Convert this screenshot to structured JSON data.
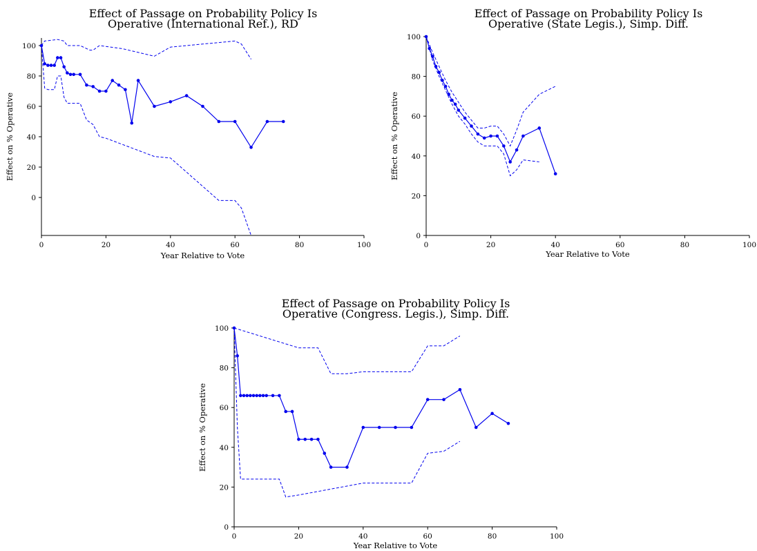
{
  "chart_data": [
    {
      "type": "line",
      "title_lines": [
        "Effect of Passage on Probability Policy Is",
        "Operative (International Ref.), RD"
      ],
      "xlabel": "Year Relative to Vote",
      "ylabel": "Effect on % Operative",
      "xlim": [
        0,
        100
      ],
      "ylim": [
        -25,
        105
      ],
      "xticks": [
        0,
        20,
        40,
        60,
        80,
        100
      ],
      "yticks": [
        0,
        20,
        40,
        60,
        80,
        100
      ],
      "grid": false,
      "series": [
        {
          "role": "estimate",
          "x": [
            0,
            1,
            2,
            3,
            4,
            5,
            6,
            7,
            8,
            9,
            10,
            12,
            14,
            16,
            18,
            20,
            22,
            24,
            26,
            28,
            30,
            35,
            40,
            45,
            50,
            55,
            60,
            65,
            70,
            75
          ],
          "y": [
            100,
            88,
            87,
            87,
            87,
            92,
            92,
            86,
            82,
            81,
            81,
            81,
            74,
            73,
            70,
            70,
            77,
            74,
            71,
            49,
            77,
            60,
            63,
            67,
            60,
            50,
            50,
            33,
            50,
            50
          ]
        },
        {
          "role": "upper",
          "x": [
            0,
            1,
            5,
            7,
            8,
            12,
            14,
            15,
            16,
            18,
            25,
            35,
            40,
            60,
            62,
            65
          ],
          "y": [
            100,
            103,
            104,
            103,
            100,
            100,
            98,
            97,
            97,
            100,
            98,
            93,
            99,
            103,
            101,
            91
          ]
        },
        {
          "role": "lower",
          "x": [
            0,
            1,
            2,
            4,
            5,
            6,
            7,
            8,
            12,
            14,
            16,
            18,
            20,
            35,
            40,
            55,
            60,
            62,
            65
          ],
          "y": [
            100,
            72,
            71,
            71,
            80,
            80,
            66,
            62,
            62,
            51,
            48,
            40,
            39,
            27,
            26,
            -2,
            -2,
            -7,
            -25
          ]
        }
      ]
    },
    {
      "type": "line",
      "title_lines": [
        "Effect of Passage on Probability Policy Is",
        "Operative (State Legis.), Simp. Diff."
      ],
      "xlabel": "Year Relative to Vote",
      "ylabel": "Effect on % Operative",
      "xlim": [
        0,
        100
      ],
      "ylim": [
        0,
        100
      ],
      "xticks": [
        0,
        20,
        40,
        60,
        80,
        100
      ],
      "yticks": [
        0,
        20,
        40,
        60,
        80,
        100
      ],
      "grid": false,
      "series": [
        {
          "role": "estimate",
          "x": [
            0,
            1,
            2,
            3,
            4,
            5,
            6,
            7,
            8,
            9,
            10,
            12,
            14,
            16,
            18,
            20,
            22,
            24,
            26,
            28,
            30,
            35,
            40
          ],
          "y": [
            100,
            94,
            90,
            85,
            82,
            78,
            75,
            71,
            68,
            66,
            63,
            59,
            55,
            51,
            49,
            50,
            50,
            45,
            37,
            43,
            50,
            54,
            31
          ]
        },
        {
          "role": "upper",
          "x": [
            0,
            2,
            4,
            6,
            8,
            10,
            12,
            14,
            16,
            18,
            20,
            22,
            24,
            26,
            28,
            30,
            35,
            40
          ],
          "y": [
            100,
            92,
            85,
            78,
            72,
            67,
            62,
            58,
            54,
            54,
            55,
            55,
            51,
            45,
            53,
            62,
            71,
            75
          ]
        },
        {
          "role": "lower",
          "x": [
            0,
            2,
            4,
            6,
            8,
            10,
            12,
            14,
            16,
            18,
            20,
            22,
            24,
            26,
            28,
            30,
            35
          ],
          "y": [
            100,
            88,
            80,
            73,
            66,
            60,
            56,
            51,
            47,
            45,
            45,
            45,
            41,
            30,
            33,
            38,
            37
          ]
        }
      ]
    },
    {
      "type": "line",
      "title_lines": [
        "Effect of Passage on Probability Policy Is",
        "Operative (Congress. Legis.), Simp. Diff."
      ],
      "xlabel": "Year Relative to Vote",
      "ylabel": "Effect on % Operative",
      "xlim": [
        0,
        100
      ],
      "ylim": [
        0,
        100
      ],
      "xticks": [
        0,
        20,
        40,
        60,
        80,
        100
      ],
      "yticks": [
        0,
        20,
        40,
        60,
        80,
        100
      ],
      "grid": false,
      "series": [
        {
          "role": "estimate",
          "x": [
            0,
            1,
            2,
            3,
            4,
            5,
            6,
            7,
            8,
            9,
            10,
            12,
            14,
            16,
            18,
            20,
            22,
            24,
            26,
            28,
            30,
            35,
            40,
            45,
            50,
            55,
            60,
            65,
            70,
            75,
            80,
            85
          ],
          "y": [
            100,
            86,
            66,
            66,
            66,
            66,
            66,
            66,
            66,
            66,
            66,
            66,
            66,
            58,
            58,
            44,
            44,
            44,
            44,
            37,
            30,
            30,
            50,
            50,
            50,
            50,
            64,
            64,
            69,
            50,
            57,
            52
          ]
        },
        {
          "role": "upper",
          "x": [
            0,
            20,
            26,
            30,
            35,
            40,
            55,
            60,
            65,
            70
          ],
          "y": [
            100,
            90,
            90,
            77,
            77,
            78,
            78,
            91,
            91,
            96
          ]
        },
        {
          "role": "lower",
          "x": [
            0,
            1,
            2,
            14,
            16,
            20,
            30,
            40,
            55,
            60,
            65,
            70
          ],
          "y": [
            100,
            50,
            24,
            24,
            15,
            16,
            19,
            22,
            22,
            37,
            38,
            43
          ]
        }
      ]
    }
  ]
}
